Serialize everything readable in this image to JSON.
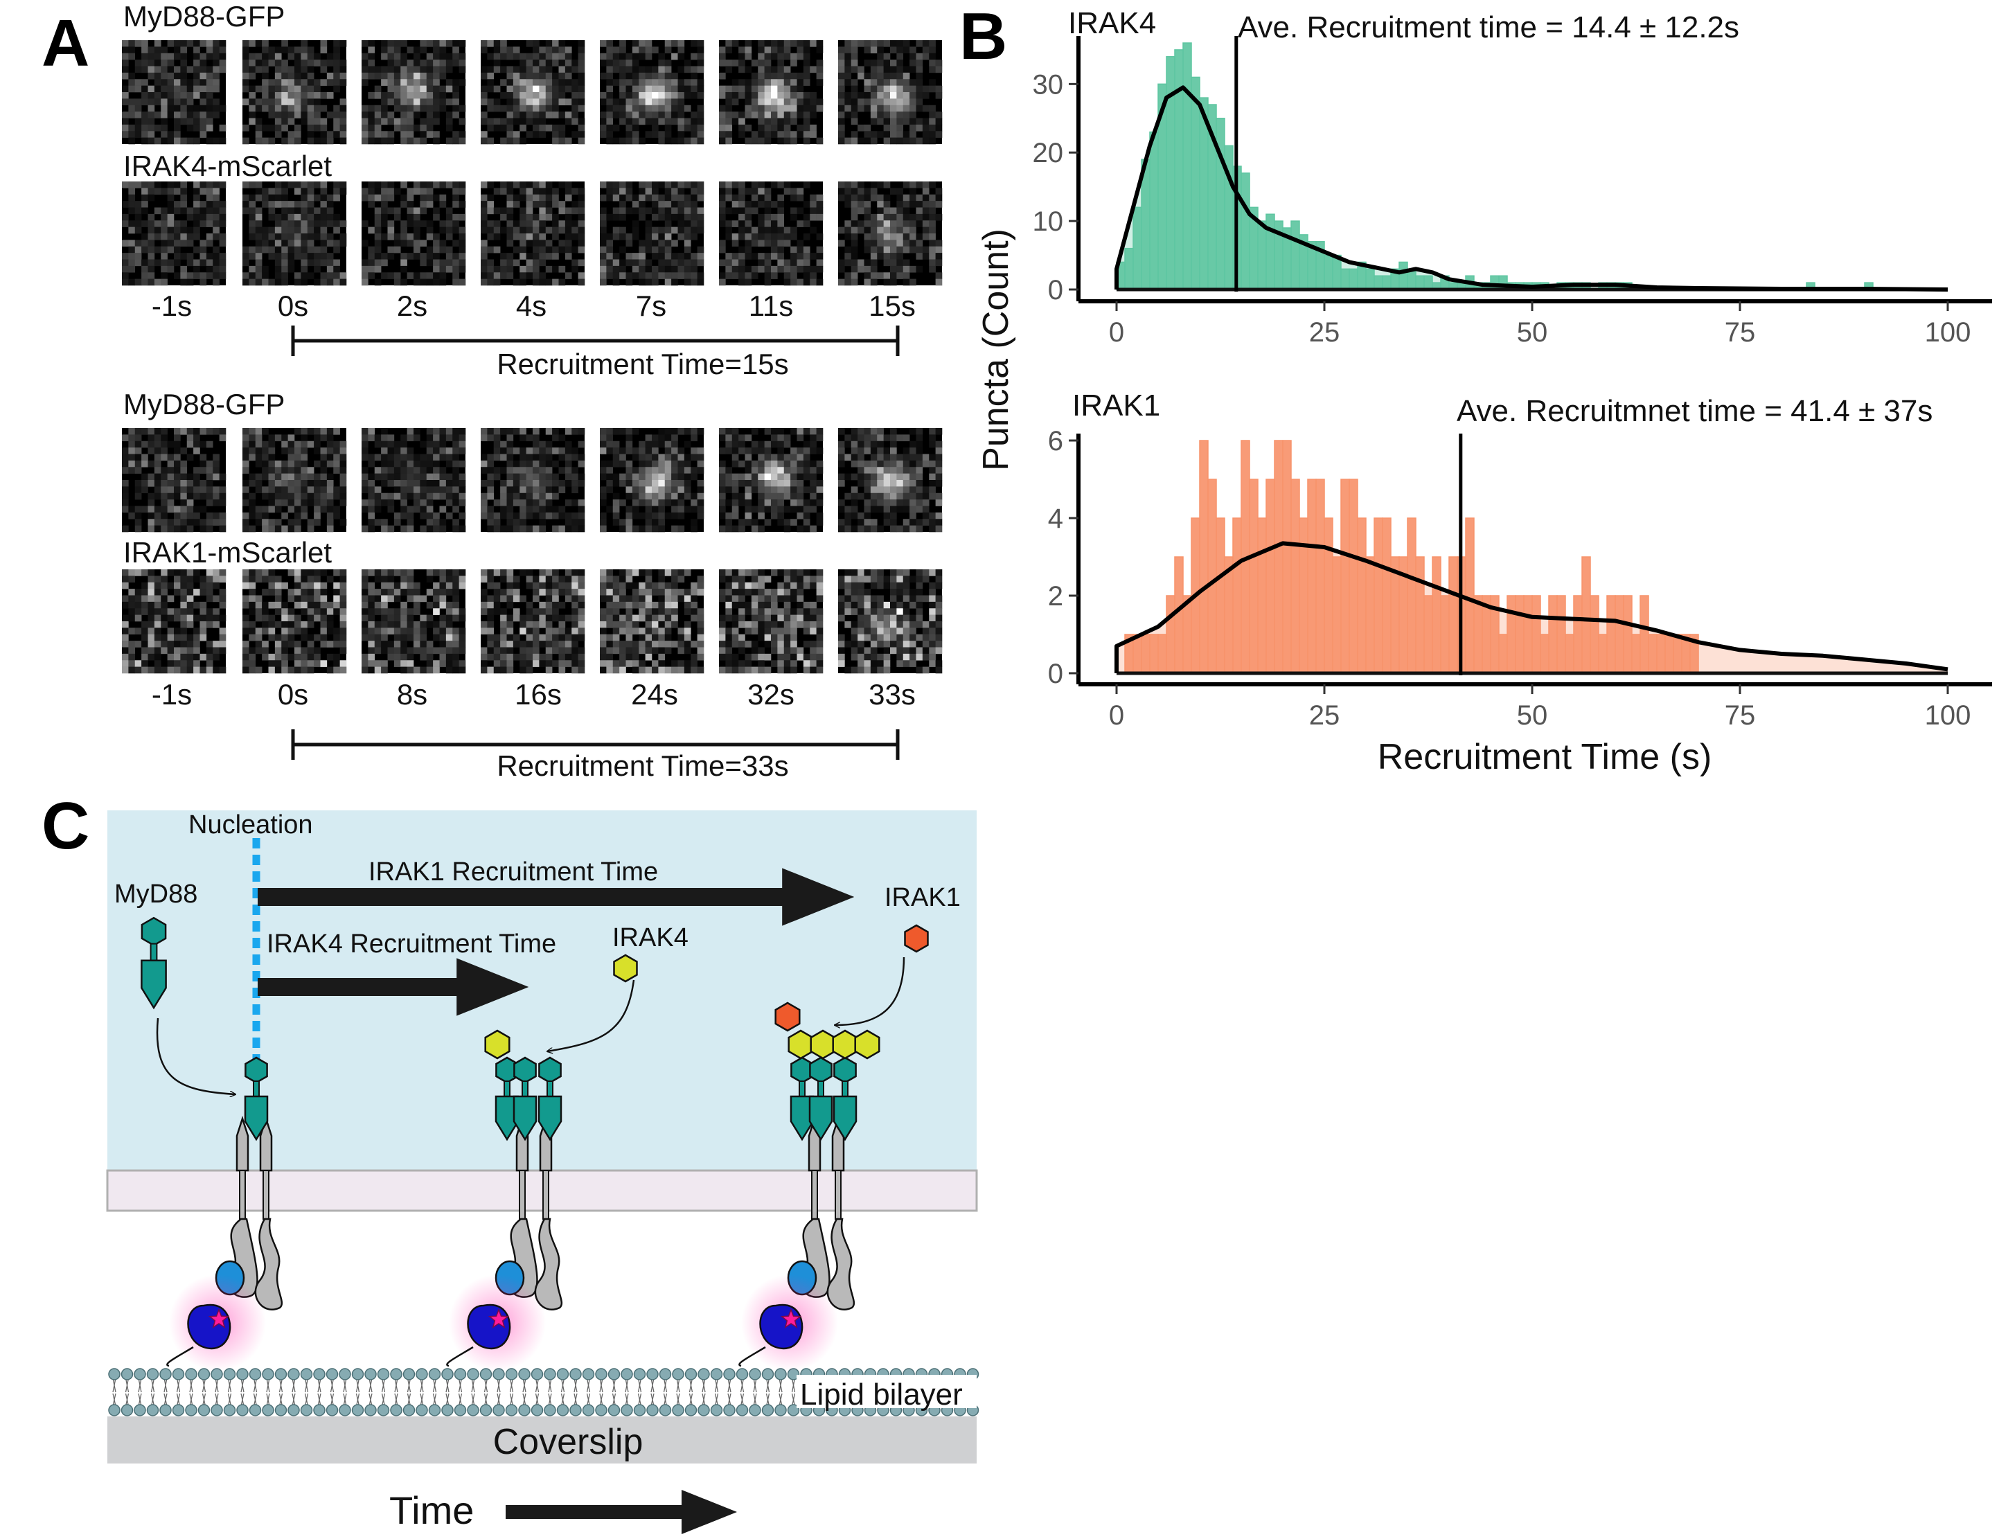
{
  "panel_a": {
    "label": "A",
    "groups": [
      {
        "top_label": "MyD88-GFP",
        "bottom_label": "IRAK4-mScarlet",
        "times": [
          "-1s",
          "0s",
          "2s",
          "4s",
          "7s",
          "11s",
          "15s"
        ],
        "top_intensity": [
          0.15,
          0.45,
          0.62,
          0.72,
          0.9,
          0.88,
          0.7
        ],
        "bottom_intensity": [
          0.08,
          0.15,
          0.0,
          0.05,
          0.0,
          0.05,
          0.42
        ],
        "bracket_label": "Recruitment Time=15s"
      },
      {
        "top_label": "MyD88-GFP",
        "bottom_label": "IRAK1-mScarlet",
        "times": [
          "-1s",
          "0s",
          "8s",
          "16s",
          "24s",
          "32s",
          "33s"
        ],
        "top_intensity": [
          0.08,
          0.22,
          0.18,
          0.3,
          0.75,
          0.78,
          0.82
        ],
        "bottom_intensity": [
          0.0,
          0.05,
          0.0,
          0.0,
          0.05,
          0.08,
          0.45
        ],
        "bracket_label": "Recruitment Time=33s"
      }
    ]
  },
  "panel_b": {
    "label": "B",
    "ylabel": "Puncta (Count)",
    "xlabel": "Recruitment Time (s)"
  },
  "chart_data": [
    {
      "type": "bar",
      "subtitle": "IRAK4",
      "annotation": "Ave. Recruitment time = 14.4 ± 12.2s",
      "mean_line_x": 14.4,
      "bin_width": 1,
      "bar_color": "#5ec6a1",
      "xlim": [
        0,
        100
      ],
      "ylim": [
        0,
        36
      ],
      "xticks": [
        0,
        25,
        50,
        75,
        100
      ],
      "yticks": [
        0,
        10,
        20,
        30
      ],
      "bins_start": 0,
      "values": [
        4,
        6,
        12,
        19,
        23,
        30,
        34,
        35,
        36,
        31,
        28,
        27,
        25,
        21,
        18,
        17,
        12,
        10,
        11,
        10,
        9,
        10,
        8,
        7,
        7,
        5,
        5,
        3,
        3,
        4,
        3,
        2,
        2,
        3,
        4,
        3,
        2,
        2,
        1,
        2,
        1,
        1,
        2,
        1,
        1,
        2,
        2,
        1,
        1,
        1,
        1,
        1,
        0,
        1,
        1,
        1,
        1,
        0,
        1,
        1,
        1,
        1,
        0,
        0,
        0,
        0,
        0,
        0,
        0,
        0,
        0,
        0,
        0,
        0,
        0,
        0,
        0,
        0,
        0,
        0,
        0,
        0,
        0,
        1,
        0,
        0,
        0,
        0,
        0,
        0,
        1,
        0,
        0,
        0,
        0,
        0,
        0,
        0,
        0,
        0
      ],
      "density": [
        [
          0,
          3
        ],
        [
          2,
          12
        ],
        [
          4,
          21
        ],
        [
          6,
          28
        ],
        [
          8,
          29.5
        ],
        [
          10,
          27
        ],
        [
          12,
          21
        ],
        [
          14,
          15
        ],
        [
          16,
          11
        ],
        [
          18,
          9
        ],
        [
          20,
          8
        ],
        [
          22,
          7
        ],
        [
          24,
          6
        ],
        [
          26,
          5
        ],
        [
          28,
          4
        ],
        [
          30,
          3.5
        ],
        [
          32,
          3
        ],
        [
          34,
          2.5
        ],
        [
          36,
          3
        ],
        [
          38,
          2.5
        ],
        [
          40,
          1.5
        ],
        [
          44,
          0.7
        ],
        [
          50,
          0.4
        ],
        [
          55,
          0.7
        ],
        [
          60,
          0.7
        ],
        [
          65,
          0.3
        ],
        [
          70,
          0.2
        ],
        [
          80,
          0.1
        ],
        [
          90,
          0.1
        ],
        [
          100,
          0
        ]
      ]
    },
    {
      "type": "bar",
      "subtitle": "IRAK1",
      "annotation": "Ave. Recruitmnet time = 41.4 ± 37s",
      "mean_line_x": 41.4,
      "bin_width": 1,
      "bar_color": "#f7936b",
      "xlim": [
        0,
        100
      ],
      "ylim": [
        0,
        6
      ],
      "xticks": [
        0,
        25,
        50,
        75,
        100
      ],
      "yticks": [
        0,
        2,
        4,
        6
      ],
      "bins_start": 0,
      "values": [
        0,
        1,
        1,
        1,
        1,
        1,
        2,
        3,
        2,
        4,
        6,
        5,
        4,
        3,
        4,
        6,
        5,
        4,
        5,
        6,
        6,
        5,
        4,
        5,
        5,
        4,
        3,
        5,
        5,
        4,
        3,
        4,
        4,
        3,
        3,
        4,
        3,
        2,
        3,
        2,
        3,
        3,
        4,
        2,
        2,
        2,
        1,
        2,
        2,
        2,
        2,
        1,
        2,
        2,
        1,
        2,
        3,
        2,
        1,
        2,
        2,
        2,
        1,
        2,
        1,
        1,
        1,
        1,
        1,
        1,
        0,
        0,
        0,
        0,
        0,
        0,
        0,
        0,
        0,
        0,
        0,
        0,
        0,
        0,
        0,
        0,
        0,
        0,
        0,
        0,
        0,
        0,
        0,
        0,
        0,
        0,
        0,
        0,
        0,
        0
      ],
      "density": [
        [
          0,
          0.7
        ],
        [
          5,
          1.2
        ],
        [
          10,
          2.1
        ],
        [
          15,
          2.9
        ],
        [
          20,
          3.35
        ],
        [
          25,
          3.25
        ],
        [
          30,
          2.9
        ],
        [
          35,
          2.5
        ],
        [
          40,
          2.1
        ],
        [
          45,
          1.7
        ],
        [
          50,
          1.45
        ],
        [
          55,
          1.4
        ],
        [
          60,
          1.35
        ],
        [
          65,
          1.1
        ],
        [
          70,
          0.8
        ],
        [
          75,
          0.6
        ],
        [
          80,
          0.5
        ],
        [
          85,
          0.45
        ],
        [
          90,
          0.35
        ],
        [
          95,
          0.25
        ],
        [
          100,
          0.1
        ]
      ]
    }
  ],
  "panel_c": {
    "label": "C",
    "nucleation": "Nucleation",
    "myd88": "MyD88",
    "irak4": "IRAK4",
    "irak1": "IRAK1",
    "irak1_arrow": "IRAK1 Recruitment Time",
    "irak4_arrow": "IRAK4 Recruitment Time",
    "lipid": "Lipid bilayer",
    "coverslip": "Coverslip",
    "time": "Time",
    "colors": {
      "myd88": "#129a8e",
      "irak4": "#d8e02a",
      "irak1": "#ef5a2c",
      "receptor": "#b9b9b9",
      "blue_domain": "#1e8fd8",
      "dark_blue": "#1614c8",
      "star": "#ff1e9a",
      "cytoplasm": "#d6ebf2",
      "membrane": "#f0e8f0",
      "coverslip_band": "#cfd0d2",
      "lipid_head": "#86abb2",
      "dash": "#1aa7ee"
    }
  }
}
